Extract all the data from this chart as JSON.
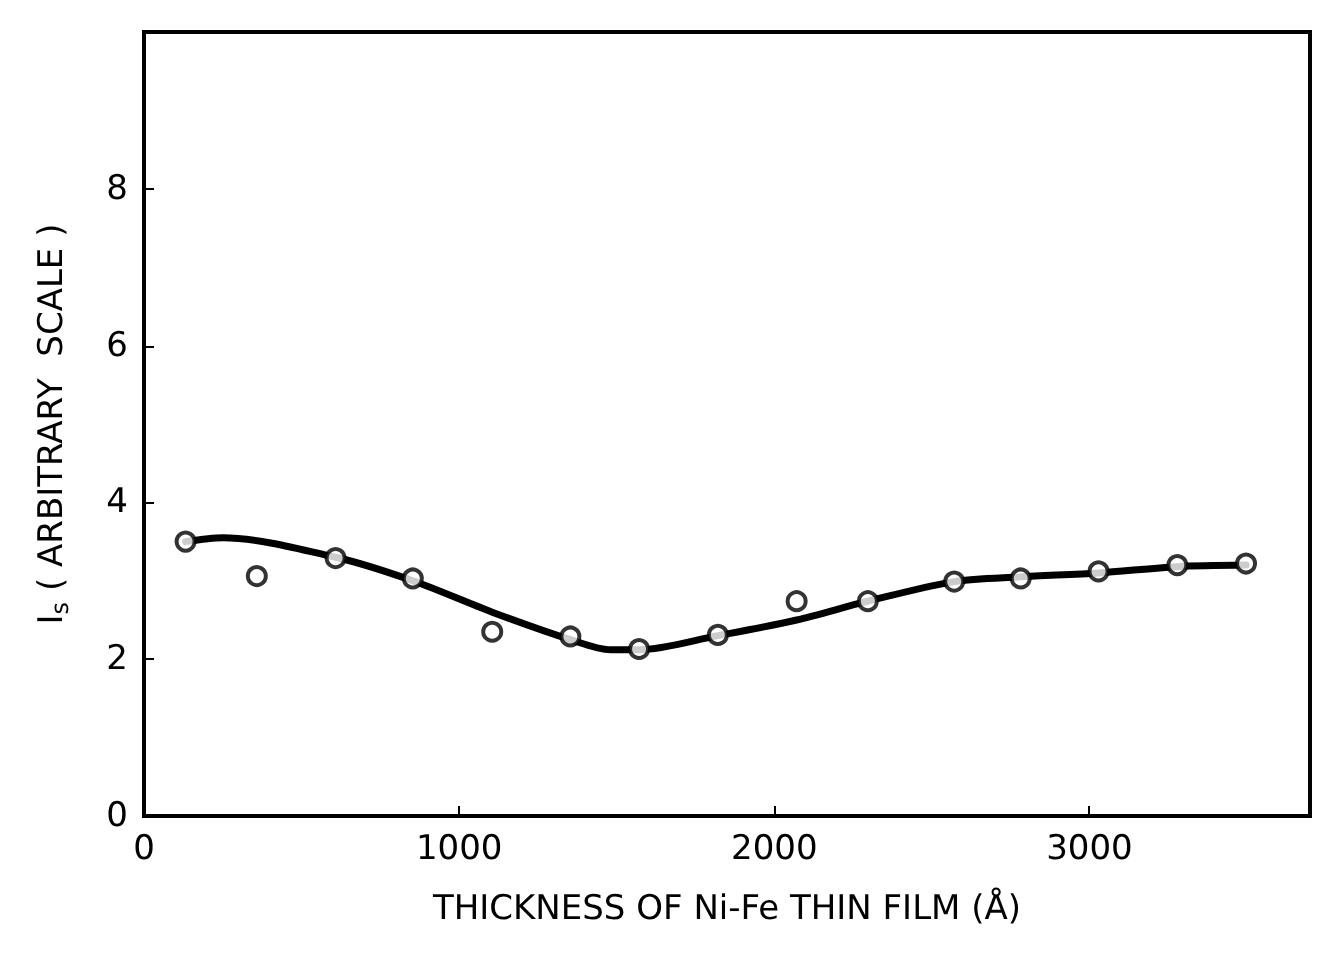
{
  "chart_data": {
    "type": "scatter",
    "xlabel": "THICKNESS OF Ni-Fe THIN FILM (Å)",
    "ylabel": "I$_{s}$ ( ARBITRARY  SCALE )",
    "xlim": [
      0,
      3700
    ],
    "xticks": [
      0,
      1000,
      2000,
      3000
    ],
    "ylim": [
      0,
      10
    ],
    "yticks": [
      0,
      2,
      4,
      6,
      8
    ],
    "grid": false,
    "marker": "circle",
    "series": [
      {
        "color": "#000000",
        "x": [
          132,
          358,
          608,
          853,
          1105,
          1353,
          1571,
          1821,
          2071,
          2297,
          2571,
          2782,
          3029,
          3279,
          3497
        ],
        "values": [
          3.5,
          3.06,
          3.29,
          3.03,
          2.35,
          2.29,
          2.13,
          2.31,
          2.74,
          2.74,
          2.99,
          3.03,
          3.12,
          3.2,
          3.22
        ]
      },
      {
        "type": "line",
        "color": "#000000",
        "marker": "none",
        "line_style": "solid",
        "x": [
          132,
          250,
          608,
          853,
          1105,
          1353,
          1480,
          1571,
          1821,
          2071,
          2297,
          2571,
          2782,
          3029,
          3279,
          3497
        ],
        "values": [
          3.5,
          3.55,
          3.3,
          3.0,
          2.6,
          2.25,
          2.12,
          2.12,
          2.3,
          2.5,
          2.74,
          2.99,
          3.05,
          3.1,
          3.18,
          3.2
        ]
      }
    ]
  }
}
